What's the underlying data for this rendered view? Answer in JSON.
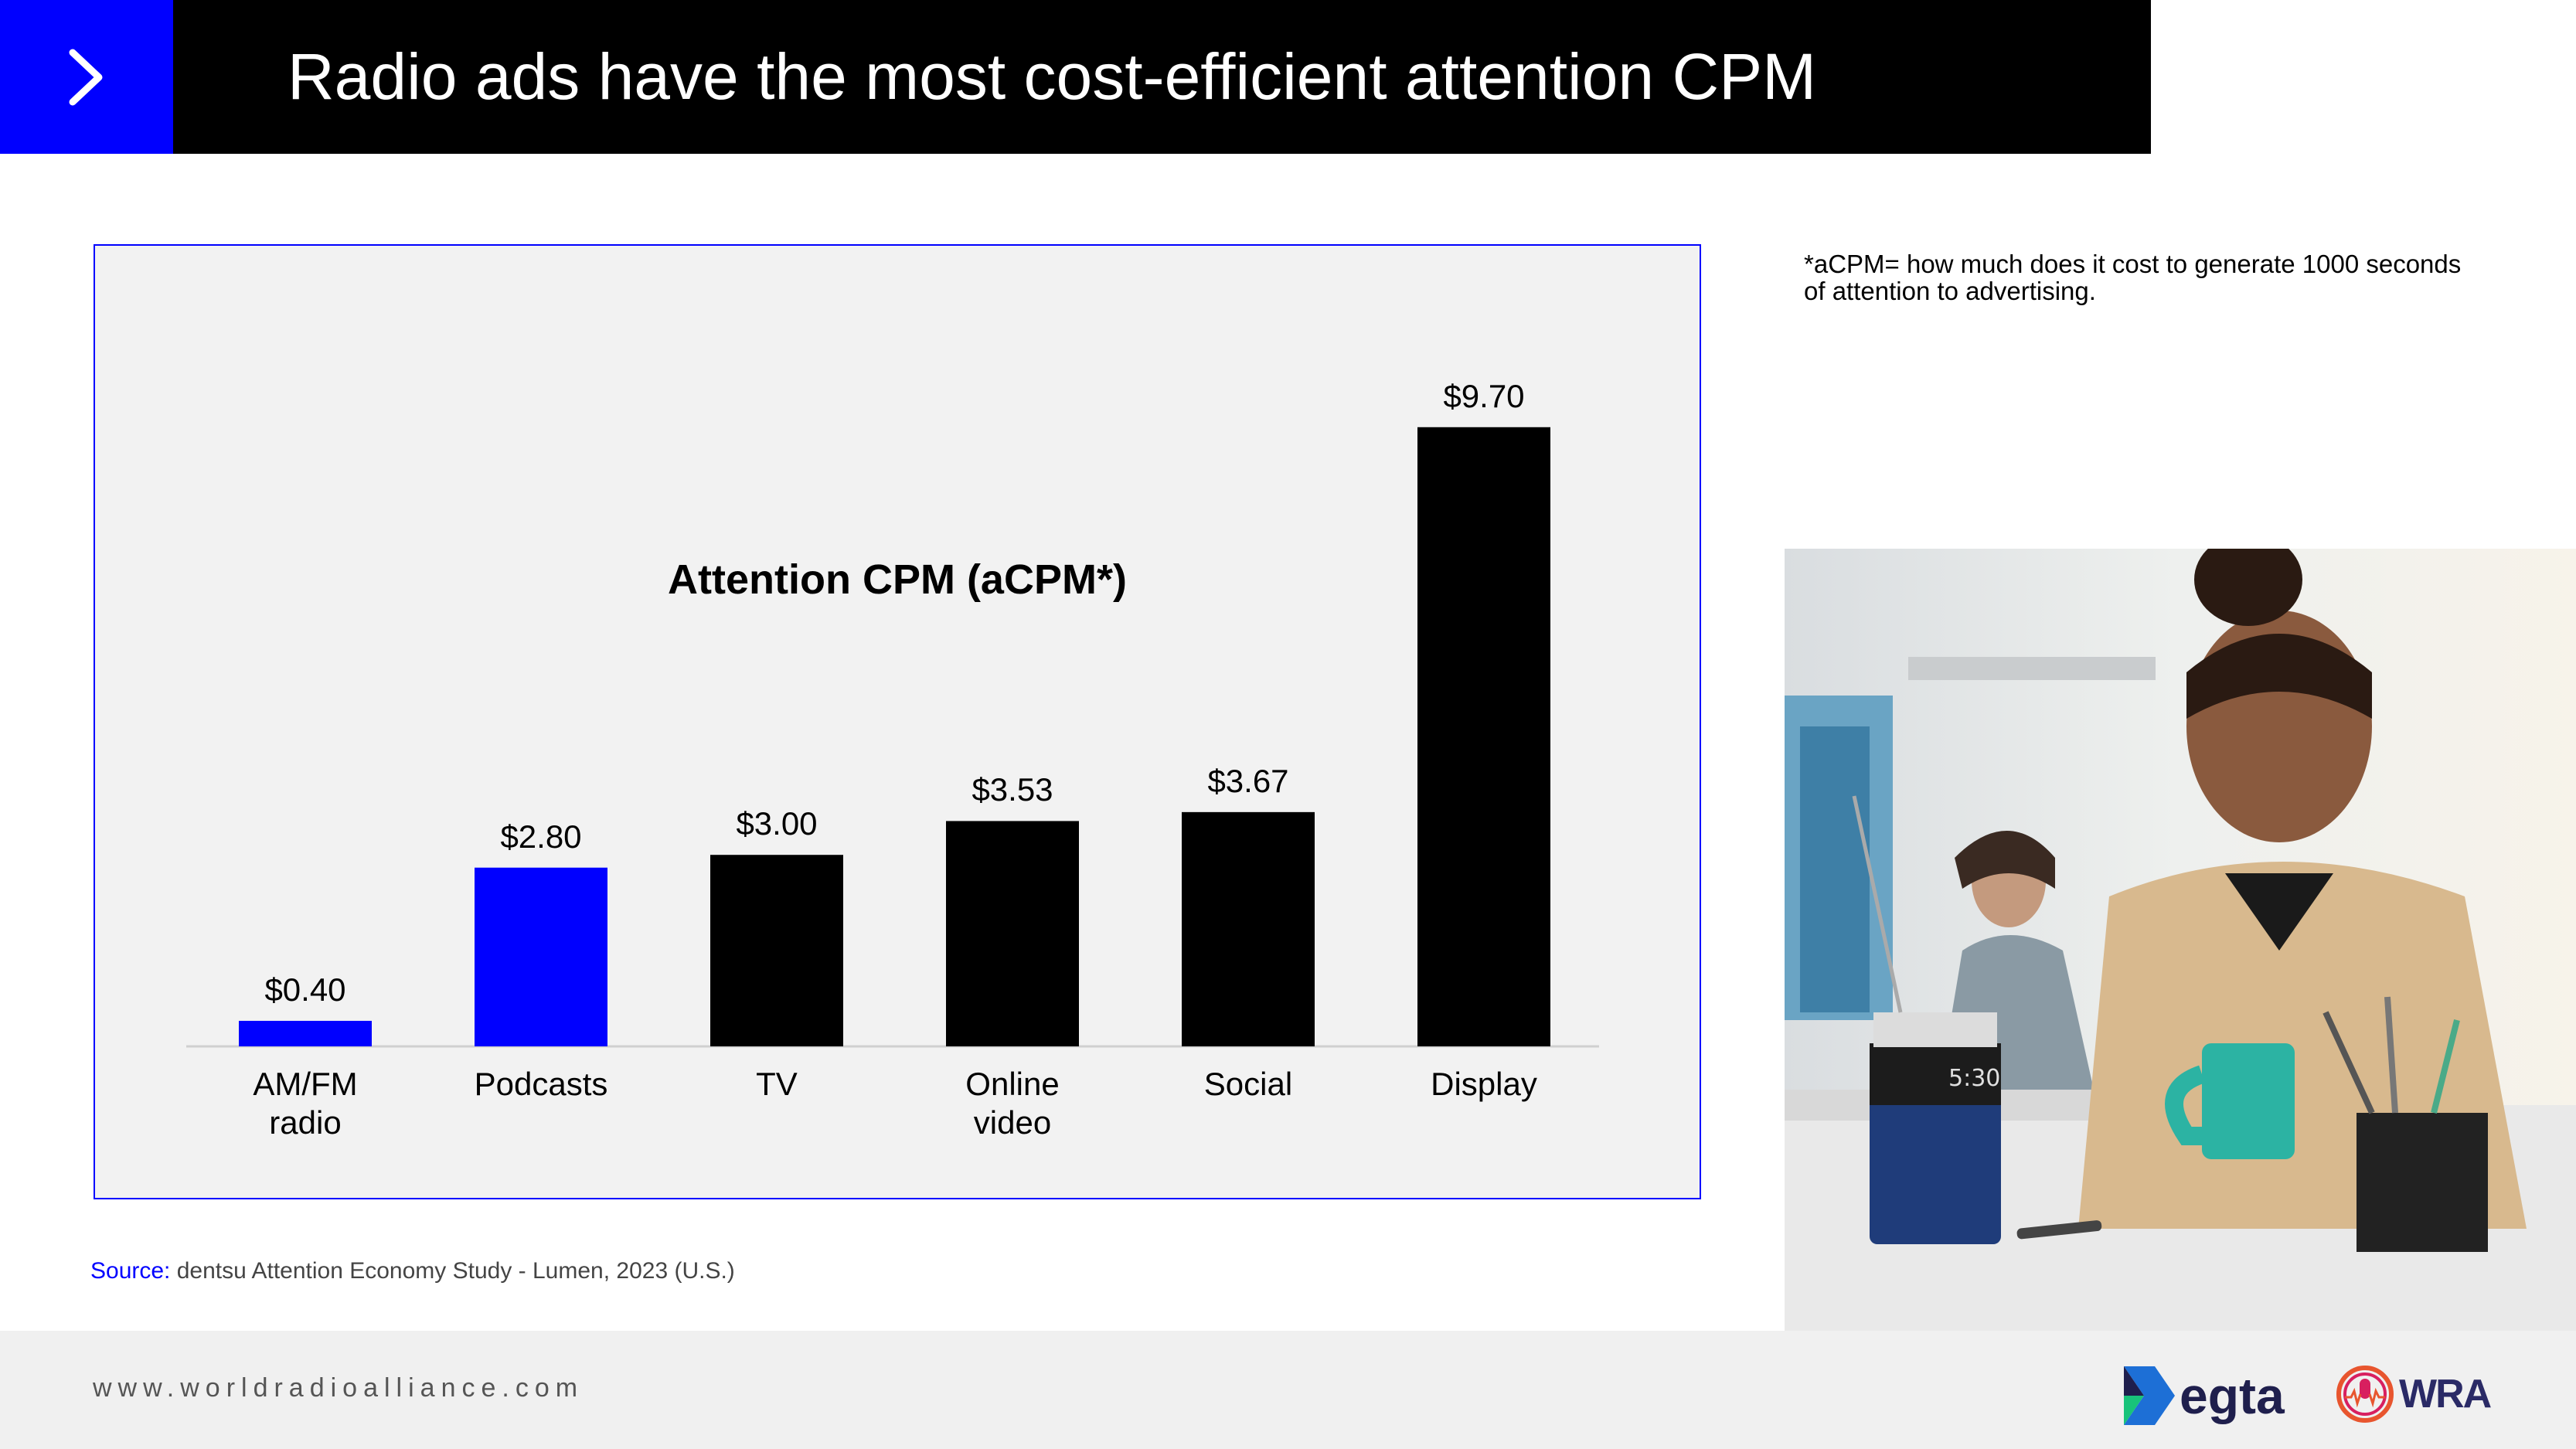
{
  "header": {
    "title": "Radio ads have the most cost-efficient attention CPM"
  },
  "colors": {
    "accent": "#0000ff",
    "bar_default": "#000000",
    "panel_bg": "#f2f2f2",
    "header_bg": "#000000"
  },
  "chart_data": {
    "type": "bar",
    "title": "Attention CPM (aCPM*)",
    "categories": [
      "AM/FM\nradio",
      "Podcasts",
      "TV",
      "Online\nvideo",
      "Social",
      "Display"
    ],
    "values": [
      0.4,
      2.8,
      3.0,
      3.53,
      3.67,
      9.7
    ],
    "value_labels": [
      "$0.40",
      "$2.80",
      "$3.00",
      "$3.53",
      "$3.67",
      "$9.70"
    ],
    "highlight": [
      true,
      true,
      false,
      false,
      false,
      false
    ],
    "xlabel": "",
    "ylabel": "",
    "ylim": [
      0,
      10
    ],
    "grid": false
  },
  "footnote": "*aCPM= how much does it cost to generate 1000 seconds of attention to advertising.",
  "source": {
    "label": "Source:",
    "text": " dentsu Attention Economy Study - Lumen, 2023 (U.S.)"
  },
  "footer": {
    "url": "www.worldradioalliance.com",
    "logo_egta": "egta",
    "logo_wra": "WRA"
  },
  "photo": {
    "radio_display": "5:30"
  }
}
